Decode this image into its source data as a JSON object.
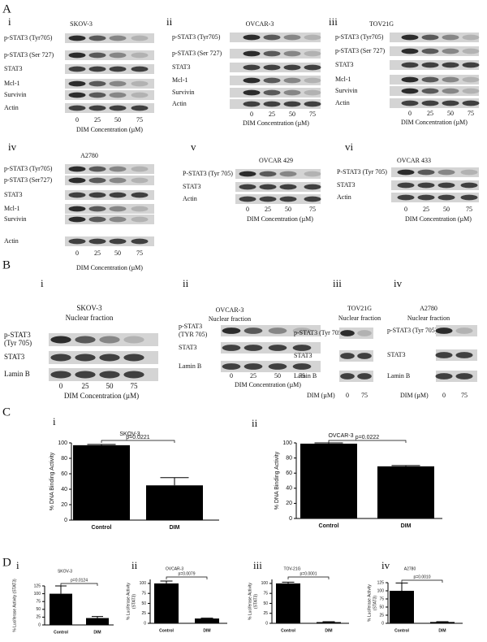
{
  "figure": {
    "sections": [
      {
        "letter": "A",
        "panels": [
          {
            "label": "i",
            "title": "SKOV-3",
            "rows": [
              "p-STAT3 (Tyr705)",
              "p-STAT3 (Ser 727)",
              "STAT3",
              "Mcl-1",
              "Survivin",
              "Actin"
            ],
            "lanes": [
              0,
              25,
              50,
              75
            ],
            "xlabel": "DIM Concentration  (µM)"
          },
          {
            "label": "ii",
            "title": "OVCAR-3",
            "rows": [
              "p-STAT3 (Tyr705)",
              "p-STAT3 (Ser 727)",
              "STAT3",
              "Mcl-1",
              "Survivin",
              "Actin"
            ],
            "lanes": [
              0,
              25,
              50,
              75
            ],
            "xlabel": "DIM Concentration  (µM)"
          },
          {
            "label": "iii",
            "title": "TOV21G",
            "rows": [
              "p-STAT3 (Tyr705)",
              "p-STAT3 (Ser 727)",
              "STAT3",
              "Mcl-1",
              "Survivin",
              "Actin"
            ],
            "lanes": [
              0,
              25,
              50,
              75
            ],
            "xlabel": "DIM Concentration  (µM)"
          },
          {
            "label": "iv",
            "title": "A2780",
            "rows": [
              "p-STAT3 (Tyr705)",
              "p-STAT3 (Ser727)",
              "STAT3",
              "Mcl-1",
              "Survivin",
              "Actin"
            ],
            "lanes": [
              0,
              25,
              50,
              75
            ],
            "xlabel": "DIM Concentration  (µM)"
          },
          {
            "label": "v",
            "title": "OVCAR 429",
            "rows": [
              "P-STAT3 (Tyr 705)",
              "STAT3",
              "Actin"
            ],
            "lanes": [
              0,
              25,
              50,
              75
            ],
            "xlabel": "DIM Concentration  (µM)"
          },
          {
            "label": "vi",
            "title": "OVCAR 433",
            "rows": [
              "P-STAT3 (Tyr 705)",
              "STAT3",
              "Actin"
            ],
            "lanes": [
              0,
              25,
              50,
              75
            ],
            "xlabel": "DIM Concentration  (µM)"
          }
        ]
      },
      {
        "letter": "B",
        "panels": [
          {
            "label": "i",
            "title": "SKOV-3",
            "subtitle": "Nuclear fraction",
            "rows": [
              [
                "p-STAT3",
                "(Tyr 705)"
              ],
              "STAT3",
              "Lamin B"
            ],
            "lanes": [
              0,
              25,
              50,
              75
            ],
            "xlabel": "DIM Concentration (µM)"
          },
          {
            "label": "ii",
            "title": "OVCAR-3",
            "subtitle": "Nuclear fraction",
            "rows": [
              [
                "p-STAT3",
                "(TYR 705)"
              ],
              "STAT3",
              "Lamin B"
            ],
            "lanes": [
              0,
              25,
              50,
              75
            ],
            "xlabel": "DIM Concentration (µM)"
          },
          {
            "label": "iii",
            "title": "TOV21G",
            "subtitle": "Nuclear fraction",
            "rows": [
              "p-STAT3 (Tyr 705)",
              "STAT3",
              "Lamin B"
            ],
            "lanes": [
              0,
              75
            ],
            "xlabel": "DIM (µM)"
          },
          {
            "label": "iv",
            "title": "A2780",
            "subtitle": "Nuclear fraction",
            "rows": [
              "p-STAT3 (Tyr 705)",
              "STAT3",
              "Lamin B"
            ],
            "lanes": [
              0,
              75
            ],
            "xlabel": "DIM (µM)"
          }
        ]
      },
      {
        "letter": "C"
      },
      {
        "letter": "D"
      }
    ]
  },
  "chart_data": [
    {
      "type": "bar",
      "panel": "i",
      "title": "SKOV-3",
      "ylabel": "% DNA Binding Activity",
      "categories": [
        "Control",
        "DIM"
      ],
      "values": [
        97,
        45
      ],
      "errors": [
        1,
        10
      ],
      "color": "#000000",
      "ylim": [
        0,
        100
      ],
      "yticks": [
        0,
        20,
        40,
        60,
        80,
        100
      ],
      "annotation": "p=0.0221"
    },
    {
      "type": "bar",
      "panel": "ii",
      "title": "OVCAR-3",
      "ylabel": "% DNA Binding Activity",
      "categories": [
        "Control",
        "DIM"
      ],
      "values": [
        99,
        69
      ],
      "errors": [
        1,
        1
      ],
      "color": "#000000",
      "ylim": [
        0,
        100
      ],
      "yticks": [
        0,
        20,
        40,
        60,
        80,
        100
      ],
      "annotation": "p=0.0222"
    },
    {
      "type": "bar",
      "panel": "i",
      "title": "SKOV-3",
      "ylabel": [
        "% Luciferase Activity (STAT3)"
      ],
      "categories": [
        "Control",
        "DIM"
      ],
      "values": [
        100,
        22
      ],
      "errors": [
        25,
        5
      ],
      "color": "#000000",
      "ylim": [
        0,
        125
      ],
      "yticks": [
        0,
        25,
        50,
        75,
        100,
        125
      ],
      "annotation": "p=0.0124"
    },
    {
      "type": "bar",
      "panel": "ii",
      "title": "OVCAR-3",
      "ylabel": [
        "% Luciferase Activity",
        "(STAT3)"
      ],
      "categories": [
        "Control",
        "DIM"
      ],
      "values": [
        100,
        12
      ],
      "errors": [
        6,
        1
      ],
      "color": "#000000",
      "ylim": [
        0,
        110
      ],
      "yticks": [
        0,
        25,
        50,
        75,
        100
      ],
      "annotation": "p=0.0079"
    },
    {
      "type": "bar",
      "panel": "iii",
      "title": "TOV-21G",
      "ylabel": [
        "% Luciferase Activity",
        "(STAT3)"
      ],
      "categories": [
        "Control",
        "DIM"
      ],
      "values": [
        100,
        3
      ],
      "errors": [
        3,
        1
      ],
      "color": "#000000",
      "ylim": [
        0,
        110
      ],
      "yticks": [
        0,
        25,
        50,
        75,
        100
      ],
      "annotation": "p=0.0001"
    },
    {
      "type": "bar",
      "panel": "iv",
      "title": "A2780",
      "ylabel": [
        "% Luciferase Activity",
        "(STAT3)"
      ],
      "categories": [
        "Control",
        "DIM"
      ],
      "values": [
        100,
        4
      ],
      "errors": [
        24,
        1
      ],
      "color": "#000000",
      "ylim": [
        0,
        125
      ],
      "yticks": [
        0,
        25,
        50,
        75,
        100,
        125
      ],
      "annotation": "p=0.0010"
    }
  ]
}
